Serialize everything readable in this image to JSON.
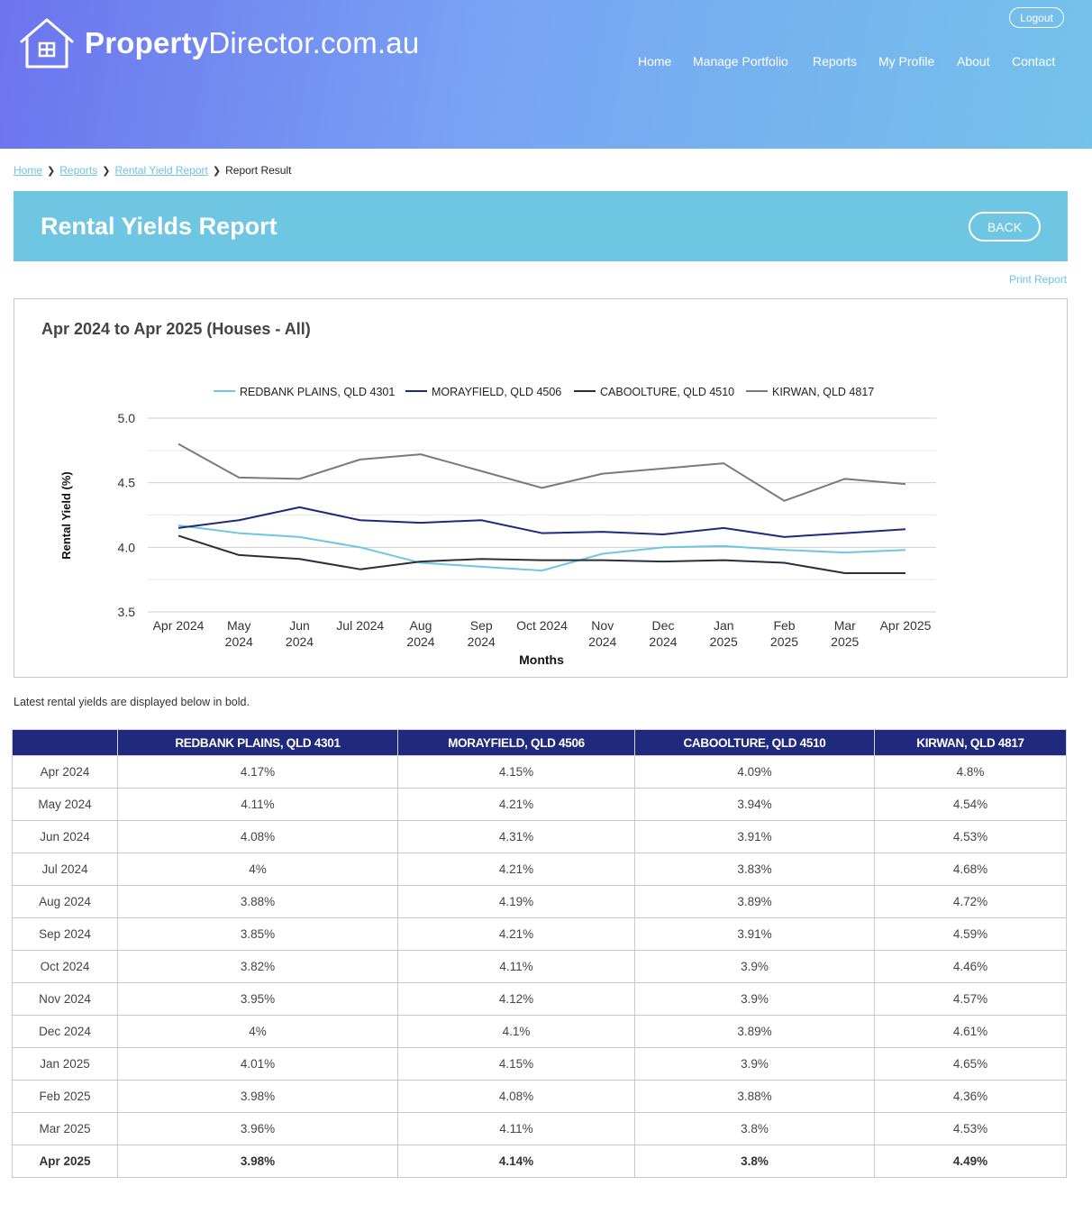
{
  "header": {
    "logo_bold": "Property",
    "logo_rest": "Director.com.au",
    "logout_label": "Logout",
    "nav": [
      {
        "label": "Home"
      },
      {
        "label": "Manage Portfolio"
      },
      {
        "label": "Reports"
      },
      {
        "label": "My Profile"
      },
      {
        "label": "About"
      },
      {
        "label": "Contact"
      }
    ]
  },
  "breadcrumb": {
    "items": [
      "Home",
      "Reports",
      "Rental Yield Report"
    ],
    "current": "Report Result"
  },
  "page": {
    "title": "Rental Yields Report",
    "back_label": "BACK",
    "print_label": "Print Report",
    "note": "Latest rental yields are displayed below in bold."
  },
  "chart_data": {
    "type": "line",
    "title": "Apr 2024 to Apr 2025 (Houses - All)",
    "xlabel": "Months",
    "ylabel": "Rental Yield (%)",
    "ylim": [
      3.5,
      5.0
    ],
    "yticks": [
      "5.0",
      "4.5",
      "4.0",
      "3.5"
    ],
    "grid": true,
    "legend_position": "top",
    "x": [
      [
        "Apr 2024"
      ],
      [
        "May",
        "2024"
      ],
      [
        "Jun",
        "2024"
      ],
      [
        "Jul 2024"
      ],
      [
        "Aug",
        "2024"
      ],
      [
        "Sep",
        "2024"
      ],
      [
        "Oct 2024"
      ],
      [
        "Nov",
        "2024"
      ],
      [
        "Dec",
        "2024"
      ],
      [
        "Jan",
        "2025"
      ],
      [
        "Feb",
        "2025"
      ],
      [
        "Mar",
        "2025"
      ],
      [
        "Apr 2025"
      ]
    ],
    "series": [
      {
        "name": "REDBANK PLAINS, QLD 4301",
        "color": "#6ec6e2",
        "values": [
          4.17,
          4.11,
          4.08,
          4.0,
          3.88,
          3.85,
          3.82,
          3.95,
          4.0,
          4.01,
          3.98,
          3.96,
          3.98
        ]
      },
      {
        "name": "MORAYFIELD, QLD 4506",
        "color": "#1f2a7c",
        "values": [
          4.15,
          4.21,
          4.31,
          4.21,
          4.19,
          4.21,
          4.11,
          4.12,
          4.1,
          4.15,
          4.08,
          4.11,
          4.14
        ]
      },
      {
        "name": "CABOOLTURE, QLD 4510",
        "color": "#2b2f3a",
        "values": [
          4.09,
          3.94,
          3.91,
          3.83,
          3.89,
          3.91,
          3.9,
          3.9,
          3.89,
          3.9,
          3.88,
          3.8,
          3.8
        ]
      },
      {
        "name": "KIRWAN, QLD 4817",
        "color": "#777b80",
        "values": [
          4.8,
          4.54,
          4.53,
          4.68,
          4.72,
          4.59,
          4.46,
          4.57,
          4.61,
          4.65,
          4.36,
          4.53,
          4.49
        ]
      }
    ]
  },
  "table": {
    "headers": [
      "",
      "REDBANK PLAINS, QLD 4301",
      "MORAYFIELD, QLD 4506",
      "CABOOLTURE, QLD 4510",
      "KIRWAN, QLD 4817"
    ],
    "rows": [
      [
        "Apr 2024",
        "4.17%",
        "4.15%",
        "4.09%",
        "4.8%"
      ],
      [
        "May 2024",
        "4.11%",
        "4.21%",
        "3.94%",
        "4.54%"
      ],
      [
        "Jun 2024",
        "4.08%",
        "4.31%",
        "3.91%",
        "4.53%"
      ],
      [
        "Jul 2024",
        "4%",
        "4.21%",
        "3.83%",
        "4.68%"
      ],
      [
        "Aug 2024",
        "3.88%",
        "4.19%",
        "3.89%",
        "4.72%"
      ],
      [
        "Sep 2024",
        "3.85%",
        "4.21%",
        "3.91%",
        "4.59%"
      ],
      [
        "Oct 2024",
        "3.82%",
        "4.11%",
        "3.9%",
        "4.46%"
      ],
      [
        "Nov 2024",
        "3.95%",
        "4.12%",
        "3.9%",
        "4.57%"
      ],
      [
        "Dec 2024",
        "4%",
        "4.1%",
        "3.89%",
        "4.61%"
      ],
      [
        "Jan 2025",
        "4.01%",
        "4.15%",
        "3.9%",
        "4.65%"
      ],
      [
        "Feb 2025",
        "3.98%",
        "4.08%",
        "3.88%",
        "4.36%"
      ],
      [
        "Mar 2025",
        "3.96%",
        "4.11%",
        "3.8%",
        "4.53%"
      ],
      [
        "Apr 2025",
        "3.98%",
        "4.14%",
        "3.8%",
        "4.49%"
      ]
    ]
  }
}
